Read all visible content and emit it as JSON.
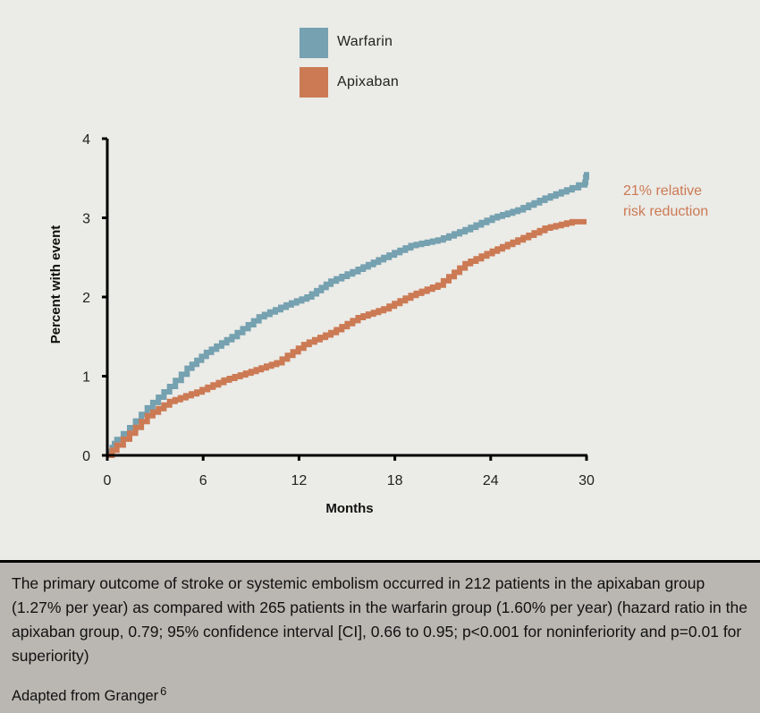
{
  "chart_data": {
    "type": "line",
    "title": "",
    "xlabel": "Months",
    "ylabel": "Percent with event",
    "xlim": [
      0,
      30
    ],
    "ylim": [
      0,
      4
    ],
    "xticks": [
      "0",
      "6",
      "12",
      "18",
      "24",
      "30"
    ],
    "yticks": [
      "0",
      "1",
      "2",
      "3",
      "4"
    ],
    "grid": false,
    "legend_position": "top-center",
    "series": [
      {
        "name": "Warfarin",
        "color": "#75a1b0",
        "x": [
          0,
          0.3,
          0.6,
          1.4,
          2.5,
          3.9,
          5.0,
          6.2,
          7.8,
          9.5,
          11.2,
          12.5,
          14.0,
          15.7,
          17.3,
          19.0,
          20.7,
          22.4,
          24.1,
          25.7,
          27.4,
          29.1,
          29.9,
          30
        ],
        "values": [
          0,
          0.1,
          0.2,
          0.35,
          0.6,
          0.87,
          1.1,
          1.3,
          1.5,
          1.75,
          1.9,
          2.0,
          2.2,
          2.35,
          2.5,
          2.65,
          2.72,
          2.85,
          3.0,
          3.1,
          3.25,
          3.38,
          3.45,
          3.58
        ]
      },
      {
        "name": "Apixaban",
        "color": "#cc7a54",
        "x": [
          0,
          0.6,
          1.4,
          2.5,
          3.9,
          5.6,
          7.3,
          9.0,
          10.6,
          12.3,
          14.0,
          15.7,
          17.3,
          19.0,
          20.7,
          22.4,
          24.1,
          25.7,
          27.4,
          29.1,
          30
        ],
        "values": [
          0,
          0.13,
          0.28,
          0.5,
          0.68,
          0.8,
          0.95,
          1.06,
          1.17,
          1.4,
          1.55,
          1.74,
          1.85,
          2.02,
          2.15,
          2.42,
          2.58,
          2.72,
          2.87,
          2.95,
          2.95
        ]
      }
    ],
    "annotation": [
      "21% relative",
      "risk reduction"
    ]
  },
  "legend": {
    "items": [
      {
        "label": "Warfarin",
        "color": "#75a1b0"
      },
      {
        "label": "Apixaban",
        "color": "#cc7a54"
      }
    ]
  },
  "caption": {
    "text": "The primary outcome of stroke or systemic embolism occurred in 212 patients in the apixaban group (1.27% per year) as compared with 265 patients in the warfarin group (1.60% per year) (hazard ratio in the apixaban group, 0.79; 95% confidence interval [CI], 0.66 to 0.95; p<0.001 for noninferiority and p=0.01 for superiority)",
    "source": "Adapted from Granger",
    "source_ref": "6"
  }
}
